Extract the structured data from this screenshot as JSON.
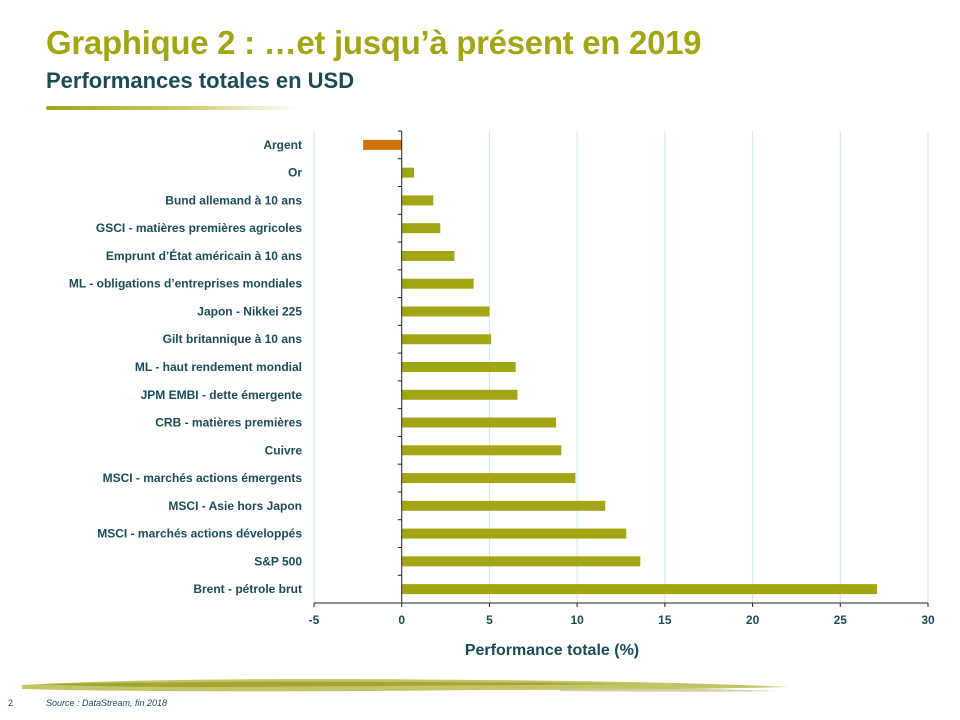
{
  "header": {
    "title": "Graphique 2 : …et jusqu’à présent en 2019",
    "subtitle": "Performances totales en USD"
  },
  "footer": {
    "page_number": "2",
    "source": "Source : DataStream, fin 2018"
  },
  "colors": {
    "positive_bar": "#a3a614",
    "negative_bar": "#d2730d",
    "title": "#a3a614",
    "text": "#1a4b57",
    "grid": "#cfe6ec"
  },
  "chart_data": {
    "type": "bar",
    "orientation": "horizontal",
    "title": "",
    "xlabel": "Performance totale (%)",
    "ylabel": "",
    "xlim": [
      -5,
      30
    ],
    "xticks": [
      -5,
      0,
      5,
      10,
      15,
      20,
      25,
      30
    ],
    "grid": true,
    "categories": [
      "Argent",
      "Or",
      "Bund allemand à 10 ans",
      "GSCI - matières premières agricoles",
      "Emprunt d’État américain à 10 ans",
      "ML - obligations d’entreprises mondiales",
      "Japon - Nikkei 225",
      "Gilt britannique à 10 ans",
      "ML - haut rendement mondial",
      "JPM EMBI - dette émergente",
      "CRB - matières premières",
      "Cuivre",
      "MSCI - marchés actions émergents",
      "MSCI - Asie hors Japon",
      "MSCI - marchés actions développés",
      "S&P 500",
      "Brent - pétrole brut"
    ],
    "values": [
      -2.2,
      0.7,
      1.8,
      2.2,
      3.0,
      4.1,
      5.0,
      5.1,
      6.5,
      6.6,
      8.8,
      9.1,
      9.9,
      11.6,
      12.8,
      13.6,
      27.1
    ]
  }
}
